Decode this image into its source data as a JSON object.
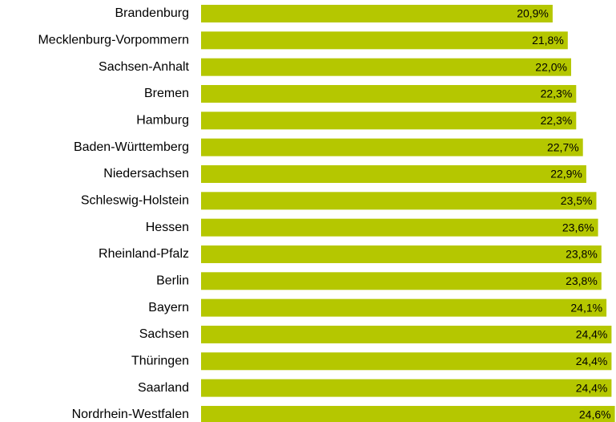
{
  "chart_data": {
    "type": "bar",
    "orientation": "horizontal",
    "categories": [
      "Brandenburg",
      "Mecklenburg-Vorpommern",
      "Sachsen-Anhalt",
      "Bremen",
      "Hamburg",
      "Baden-Württemberg",
      "Niedersachsen",
      "Schleswig-Holstein",
      "Hessen",
      "Rheinland-Pfalz",
      "Berlin",
      "Bayern",
      "Sachsen",
      "Thüringen",
      "Saarland",
      "Nordrhein-Westfalen"
    ],
    "values": [
      20.9,
      21.8,
      22.0,
      22.3,
      22.3,
      22.7,
      22.9,
      23.5,
      23.6,
      23.8,
      23.8,
      24.1,
      24.4,
      24.4,
      24.4,
      24.6
    ],
    "value_labels": [
      "20,9%",
      "21,8%",
      "22,0%",
      "22,3%",
      "22,3%",
      "22,7%",
      "22,9%",
      "23,5%",
      "23,6%",
      "23,8%",
      "23,8%",
      "24,1%",
      "24,4%",
      "24,4%",
      "24,4%",
      "24,6%"
    ],
    "color": "#b5c700",
    "xlim": [
      0,
      25
    ]
  }
}
